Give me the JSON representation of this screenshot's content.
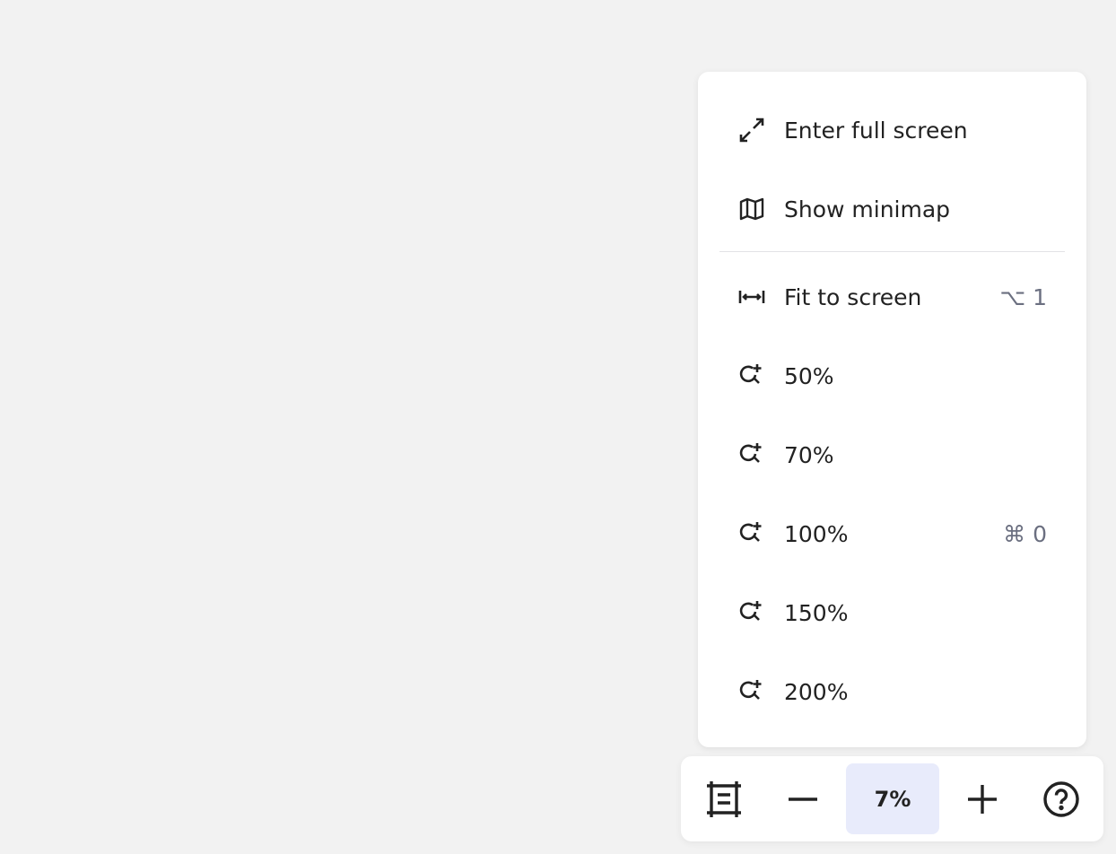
{
  "menu": {
    "items": [
      {
        "label": "Enter full screen",
        "icon": "expand-arrows-icon",
        "shortcut": ""
      },
      {
        "label": "Show minimap",
        "icon": "map-icon",
        "shortcut": ""
      },
      {
        "label": "Fit to screen",
        "icon": "fit-width-icon",
        "shortcut": "⌥ 1"
      },
      {
        "label": "50%",
        "icon": "zoom-in-icon",
        "shortcut": ""
      },
      {
        "label": "70%",
        "icon": "zoom-in-icon",
        "shortcut": ""
      },
      {
        "label": "100%",
        "icon": "zoom-in-icon",
        "shortcut": "⌘ 0"
      },
      {
        "label": "150%",
        "icon": "zoom-in-icon",
        "shortcut": ""
      },
      {
        "label": "200%",
        "icon": "zoom-in-icon",
        "shortcut": ""
      }
    ]
  },
  "toolbar": {
    "zoom_level": "7%",
    "icons": [
      "frame-icon",
      "minus-icon",
      "plus-icon",
      "help-icon"
    ],
    "zoom_bg": "#e8ebfb"
  }
}
